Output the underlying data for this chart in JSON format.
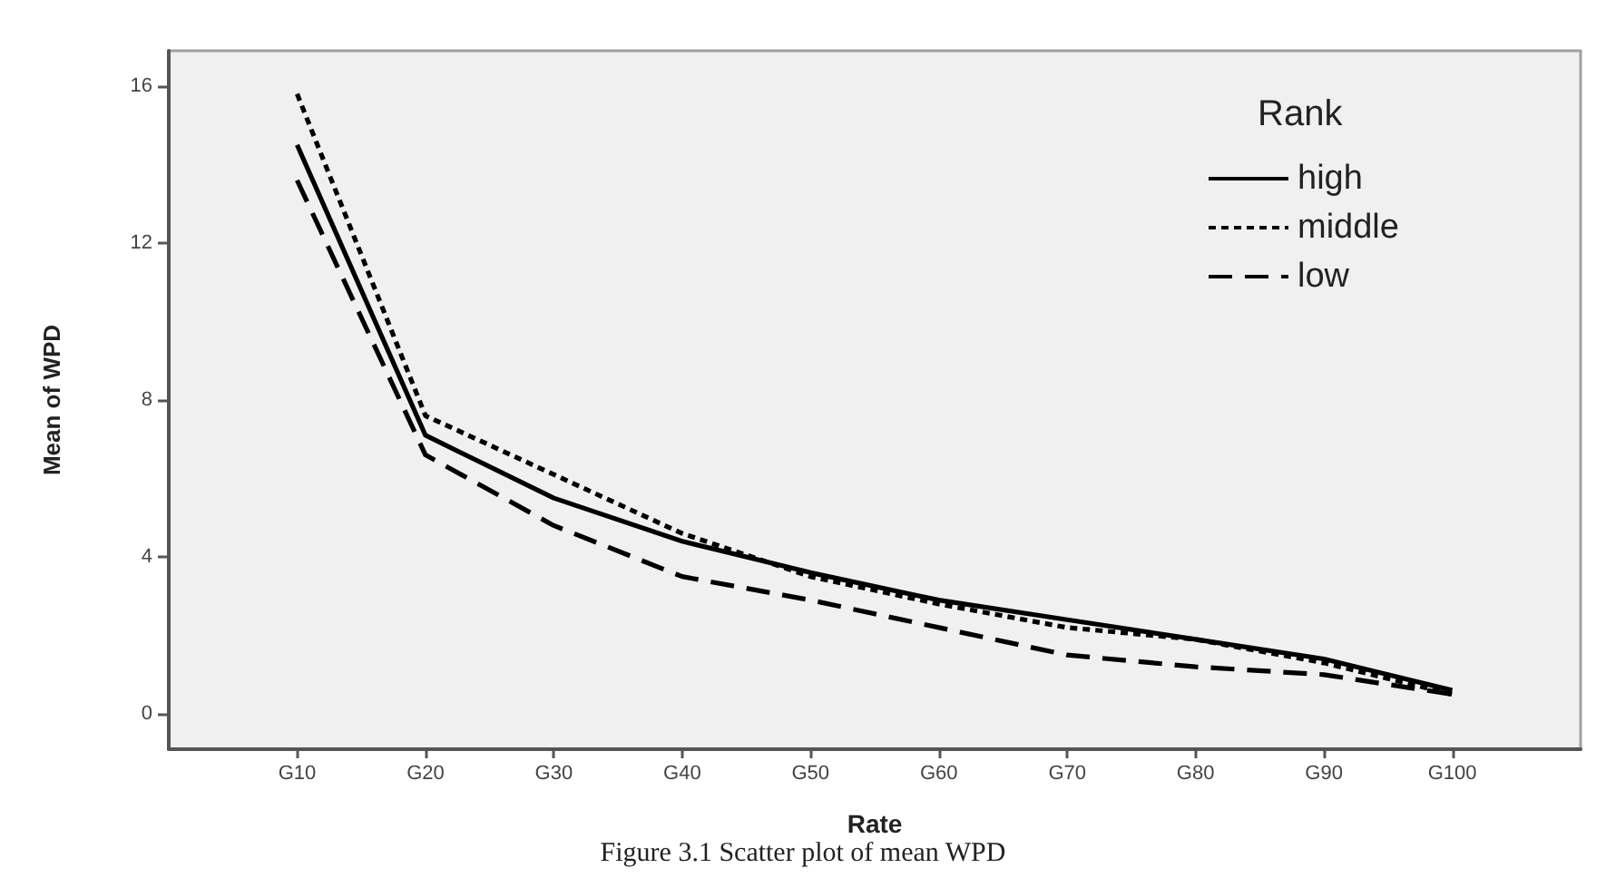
{
  "chart_data": {
    "type": "line",
    "xlabel": "Rate",
    "ylabel": "Mean of WPD",
    "legend_title": "Rank",
    "annotations": [
      "Figure 3.1 Scatter plot of mean WPD"
    ],
    "categories": [
      "G10",
      "G20",
      "G30",
      "G40",
      "G50",
      "G60",
      "G70",
      "G80",
      "G90",
      "G100"
    ],
    "series": [
      {
        "name": "high",
        "color": "#000000",
        "line_style": "solid",
        "values": [
          14.5,
          7.1,
          5.5,
          4.4,
          3.6,
          2.9,
          2.4,
          1.9,
          1.4,
          0.6
        ]
      },
      {
        "name": "middle",
        "color": "#000000",
        "line_style": "dotted",
        "values": [
          15.8,
          7.6,
          6.1,
          4.6,
          3.5,
          2.8,
          2.2,
          1.9,
          1.3,
          0.5
        ]
      },
      {
        "name": "low",
        "color": "#000000",
        "line_style": "dashed",
        "values": [
          13.6,
          6.6,
          4.8,
          3.5,
          2.9,
          2.2,
          1.5,
          1.2,
          1.0,
          0.5
        ]
      }
    ],
    "ylim": [
      -0.9,
      16.9
    ],
    "yticks": [
      0,
      4,
      8,
      12,
      16
    ],
    "grid": false,
    "legend": "top right",
    "marker": "none"
  }
}
